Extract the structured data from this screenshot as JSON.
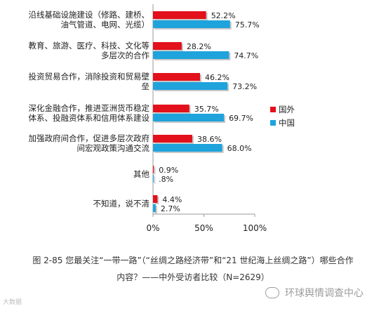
{
  "chart_data": {
    "type": "bar",
    "orientation": "horizontal",
    "categories": [
      [
        "沿线基础设施建设（修路、建桥、",
        "油气管道、电网、光缆）"
      ],
      [
        "教育、旅游、医疗、科技、文化等",
        "多层次的合作"
      ],
      [
        "投资贸易合作，消除投资和贸易壁",
        "垒"
      ],
      [
        "深化金融合作，推进亚洲货币稳定",
        "体系、投融资体系和信用体系建设"
      ],
      [
        "加强政府间合作，促进多层次政府",
        "间宏观政策沟通交流"
      ],
      [
        "其他"
      ],
      [
        "不知道，说不清"
      ]
    ],
    "series": [
      {
        "name": "国外",
        "color": "#e3111b",
        "values": [
          52.2,
          28.2,
          46.2,
          35.7,
          38.6,
          0.9,
          4.4
        ],
        "labels": [
          "52.2%",
          "28.2%",
          "46.2%",
          "35.7%",
          "38.6%",
          "0.9%",
          "4.4%"
        ]
      },
      {
        "name": "中国",
        "color": "#1fa3dc",
        "values": [
          75.7,
          74.7,
          73.2,
          69.7,
          68.0,
          0.8,
          2.7
        ],
        "labels": [
          "75.7%",
          "74.7%",
          "73.2%",
          "69.7%",
          "68.0%",
          ".8%",
          "2.7%"
        ]
      }
    ],
    "xlim": [
      0,
      100
    ],
    "xticks": [
      "0%",
      "50%",
      "100%"
    ],
    "legend": "right"
  },
  "caption": {
    "line1": "图 2-85  您最关注“一带一路”（“丝绸之路经济带”和“21 世纪海上丝绸之路”）哪些合作",
    "line2": "内容？——中外受访者比较（N=2629）"
  },
  "watermark": {
    "left": "大数据",
    "right": "环球舆情调查中心",
    "icon": "wechat-icon"
  }
}
